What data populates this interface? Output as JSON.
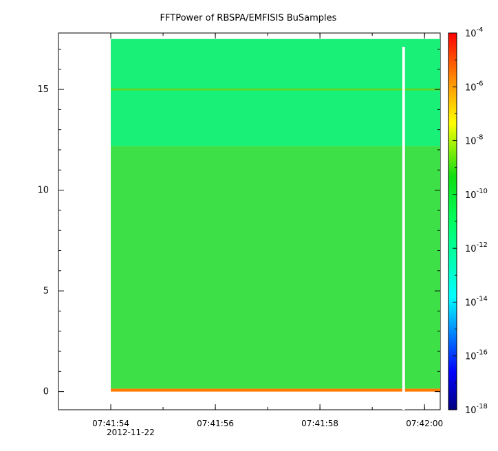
{
  "chart_data": {
    "type": "heatmap",
    "title": "FFTPower of RBSPA/EMFISIS  BuSamples",
    "xlabel": "",
    "ylabel": "",
    "x_ticks": [
      "07:41:54",
      "07:41:56",
      "07:41:58",
      "07:42:00"
    ],
    "x_date_label": "2012-11-22",
    "xlim": [
      "07:41:53",
      "07:42:00.3"
    ],
    "ylim": [
      -0.9,
      17.8
    ],
    "y_ticks": [
      0,
      5,
      10,
      15
    ],
    "data_x_range": [
      "07:41:54",
      "07:42:00.3"
    ],
    "data_y_range": [
      0,
      17.5
    ],
    "gap_x": "07:41:59.6",
    "colorbar": {
      "scale": "log",
      "range": [
        1e-18,
        0.0001
      ],
      "tick_base": "10",
      "tick_exponents": [
        "-4",
        "-6",
        "-8",
        "-10",
        "-12",
        "-14",
        "-16",
        "-18"
      ],
      "colormap": "rainbow"
    },
    "bands": [
      {
        "y_range": [
          0,
          0.15
        ],
        "log10_value": -7.5,
        "color": "#ff7a00"
      },
      {
        "y_range": [
          0.15,
          12.2
        ],
        "log10_value": -10.2,
        "color": "#3ee048"
      },
      {
        "y_range": [
          12.2,
          17.5
        ],
        "log10_value": -11.4,
        "color": "#18f078"
      },
      {
        "y_range": [
          14.95,
          15.05
        ],
        "log10_value": -9.8,
        "color": "#5ed826"
      }
    ]
  }
}
